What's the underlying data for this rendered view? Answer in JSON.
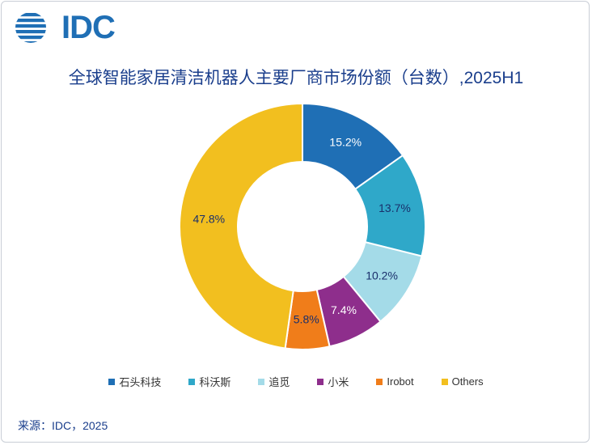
{
  "logo": {
    "text": "IDC"
  },
  "chart_data": {
    "type": "pie",
    "title": "全球智能家居清洁机器人主要厂商市场份额（台数）,2025H1",
    "unit": "%",
    "legend_position": "bottom",
    "slices": [
      {
        "name": "石头科技",
        "value": 15.2,
        "label": "15.2%",
        "color": "#1f6fb5",
        "label_color": "#ffffff"
      },
      {
        "name": "科沃斯",
        "value": 13.7,
        "label": "13.7%",
        "color": "#2fa8c9",
        "label_color": "#1a2f6b"
      },
      {
        "name": "追觅",
        "value": 10.2,
        "label": "10.2%",
        "color": "#a4dbe8",
        "label_color": "#1a2f6b"
      },
      {
        "name": "小米",
        "value": 7.4,
        "label": "7.4%",
        "color": "#8e2e8c",
        "label_color": "#ffffff"
      },
      {
        "name": "Irobot",
        "value": 5.8,
        "label": "5.8%",
        "color": "#f07d1a",
        "label_color": "#1a2f6b"
      },
      {
        "name": "Others",
        "value": 47.8,
        "label": "47.8%",
        "color": "#f2bf1f",
        "label_color": "#1a2f6b"
      }
    ]
  },
  "source": "来源：IDC，2025"
}
